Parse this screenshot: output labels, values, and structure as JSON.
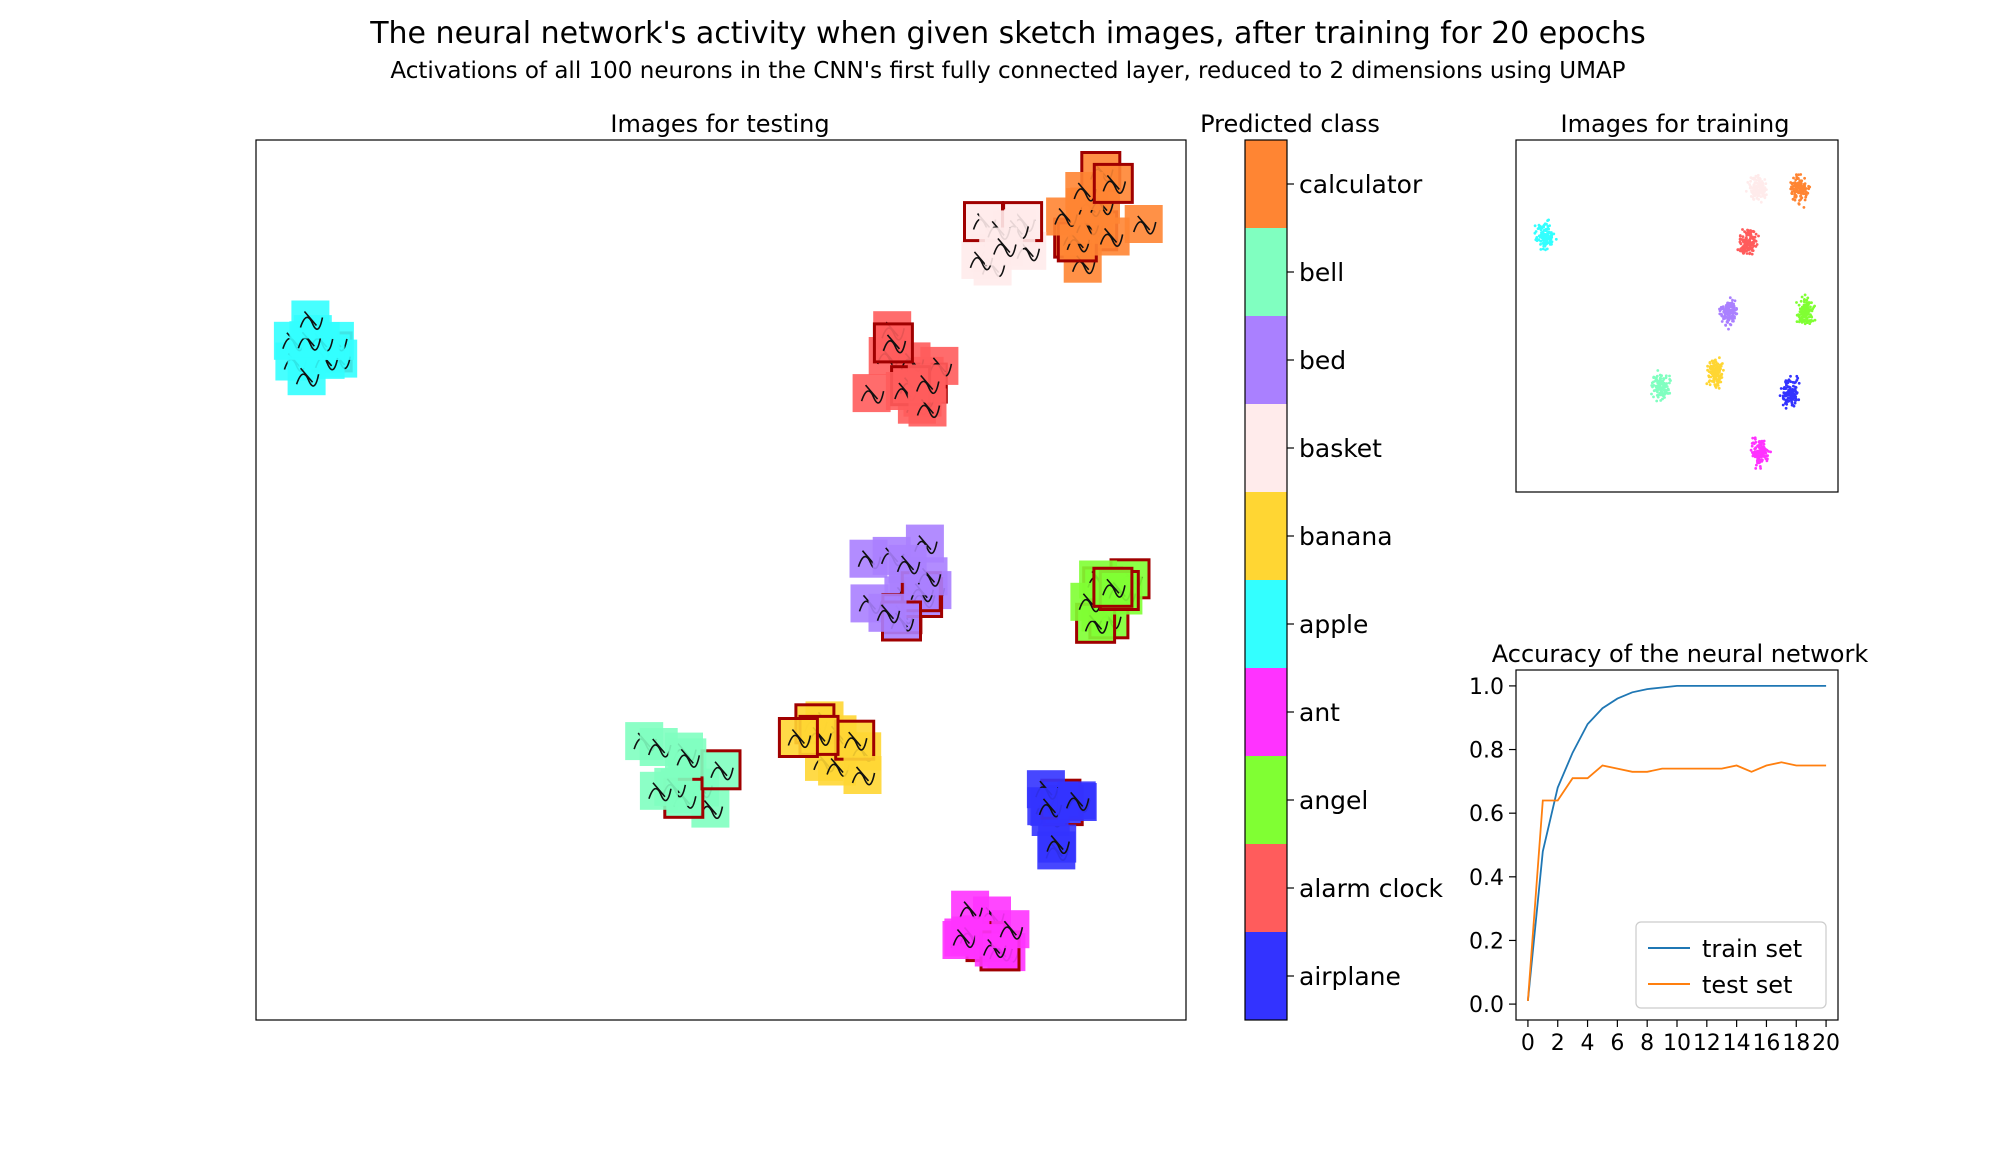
{
  "title": "The neural network's activity when given sketch images, after training for 20 epochs",
  "subtitle": "Activations of all 100 neurons in the CNN's first fully connected layer, reduced to 2 dimensions using UMAP",
  "palette": {
    "calculator": "#ff8533",
    "bell": "#80ffc0",
    "bed": "#aa80ff",
    "basket": "#ffebeb",
    "banana": "#ffd633",
    "apple": "#33ffff",
    "ant": "#ff33ff",
    "angel": "#80ff33",
    "alarm clock": "#ff5c5c",
    "airplane": "#3333ff"
  },
  "chart_data": [
    {
      "type": "scatter",
      "title": "Images for testing",
      "description_marks": "sketch thumbnails on tiles colored by predicted class; misclassified tiles outlined in dark red",
      "clusters": [
        {
          "class": "apple",
          "x": 0.06,
          "y": 0.24,
          "n": 12
        },
        {
          "class": "calculator",
          "x": 0.9,
          "y": 0.09,
          "n": 16
        },
        {
          "class": "basket",
          "x": 0.8,
          "y": 0.1,
          "n": 10
        },
        {
          "class": "alarm clock",
          "x": 0.7,
          "y": 0.27,
          "n": 14
        },
        {
          "class": "bed",
          "x": 0.69,
          "y": 0.51,
          "n": 14
        },
        {
          "class": "angel",
          "x": 0.91,
          "y": 0.52,
          "n": 10
        },
        {
          "class": "bell",
          "x": 0.46,
          "y": 0.72,
          "n": 12
        },
        {
          "class": "banana",
          "x": 0.62,
          "y": 0.7,
          "n": 10
        },
        {
          "class": "airplane",
          "x": 0.87,
          "y": 0.76,
          "n": 10
        },
        {
          "class": "ant",
          "x": 0.78,
          "y": 0.9,
          "n": 12
        }
      ]
    },
    {
      "type": "heatmap",
      "title": "Predicted class",
      "labels": [
        "calculator",
        "bell",
        "bed",
        "basket",
        "banana",
        "apple",
        "ant",
        "angel",
        "alarm clock",
        "airplane"
      ]
    },
    {
      "type": "scatter",
      "title": "Images for training",
      "clusters": [
        {
          "class": "apple",
          "x": 0.09,
          "y": 0.27,
          "n": 120
        },
        {
          "class": "calculator",
          "x": 0.88,
          "y": 0.14,
          "n": 140
        },
        {
          "class": "basket",
          "x": 0.75,
          "y": 0.14,
          "n": 120
        },
        {
          "class": "alarm clock",
          "x": 0.72,
          "y": 0.29,
          "n": 130
        },
        {
          "class": "bed",
          "x": 0.66,
          "y": 0.49,
          "n": 130
        },
        {
          "class": "angel",
          "x": 0.9,
          "y": 0.49,
          "n": 130
        },
        {
          "class": "bell",
          "x": 0.45,
          "y": 0.7,
          "n": 130
        },
        {
          "class": "banana",
          "x": 0.62,
          "y": 0.66,
          "n": 130
        },
        {
          "class": "airplane",
          "x": 0.85,
          "y": 0.72,
          "n": 130
        },
        {
          "class": "ant",
          "x": 0.76,
          "y": 0.89,
          "n": 130
        }
      ]
    },
    {
      "type": "line",
      "title": "Accuracy of the neural network",
      "x": [
        0,
        1,
        2,
        3,
        4,
        5,
        6,
        7,
        8,
        9,
        10,
        11,
        12,
        13,
        14,
        15,
        16,
        17,
        18,
        19,
        20
      ],
      "series": [
        {
          "name": "train set",
          "color": "#1f77b4",
          "values": [
            0.01,
            0.48,
            0.68,
            0.79,
            0.88,
            0.93,
            0.96,
            0.98,
            0.99,
            0.995,
            1.0,
            1.0,
            1.0,
            1.0,
            1.0,
            1.0,
            1.0,
            1.0,
            1.0,
            1.0,
            1.0
          ]
        },
        {
          "name": "test set",
          "color": "#ff7f0e",
          "values": [
            0.01,
            0.64,
            0.64,
            0.71,
            0.71,
            0.75,
            0.74,
            0.73,
            0.73,
            0.74,
            0.74,
            0.74,
            0.74,
            0.74,
            0.75,
            0.73,
            0.75,
            0.76,
            0.75,
            0.75,
            0.75
          ]
        }
      ],
      "xticks": [
        "0",
        "2",
        "4",
        "6",
        "8",
        "10",
        "12",
        "14",
        "16",
        "18",
        "20"
      ],
      "yticks": [
        "0.0",
        "0.2",
        "0.4",
        "0.6",
        "0.8",
        "1.0"
      ],
      "xlim": [
        -0.8,
        20.8
      ],
      "ylim": [
        -0.05,
        1.05
      ],
      "legend_position": "lower-right"
    }
  ]
}
